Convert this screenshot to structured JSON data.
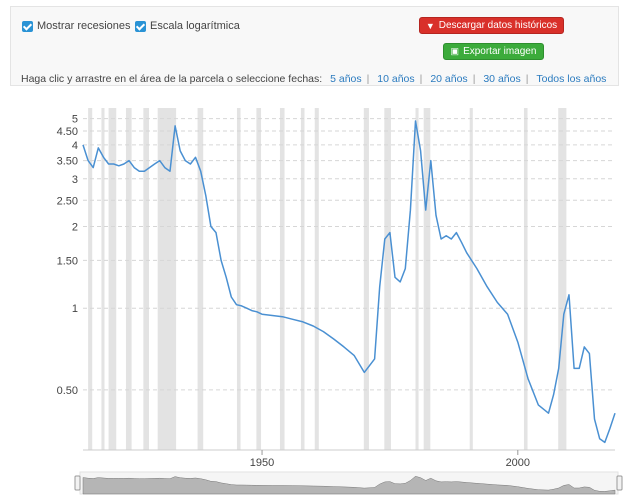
{
  "controls": {
    "recessions_label": "Mostrar recesiones",
    "log_scale_label": "Escala logarítmica",
    "download_label": "Descargar datos históricos",
    "export_label": "Exportar imagen",
    "range_prompt": "Haga clic y arrastre en el área de la parcela o seleccione fechas:",
    "range_options": [
      "5 años",
      "10 años",
      "20 años",
      "30 años",
      "Todos los años"
    ]
  },
  "colors": {
    "line": "#4a90d2",
    "recession": "#e3e3e3",
    "download": "#d9302a",
    "export": "#3cab3b"
  },
  "chart_data": {
    "type": "line",
    "title": "",
    "xlabel": "",
    "ylabel": "",
    "yscale": "log",
    "ylim": [
      0.3,
      5.2
    ],
    "xlim": [
      1915,
      2019
    ],
    "y_ticks": [
      5,
      4.5,
      4,
      3.5,
      3,
      2.5,
      2,
      1.5,
      1,
      0.5
    ],
    "y_tick_labels": [
      "5",
      "4.50",
      "4",
      "3.50",
      "3",
      "2.50",
      "2",
      "1.50",
      "1",
      "0.50"
    ],
    "x_ticks": [
      1950,
      2000
    ],
    "x_tick_labels": [
      "1950",
      "2000"
    ],
    "grid": "horizontal dashed",
    "recessions": [
      [
        1916.0,
        1916.8
      ],
      [
        1918.6,
        1919.2
      ],
      [
        1920.0,
        1921.5
      ],
      [
        1923.4,
        1924.5
      ],
      [
        1926.8,
        1927.9
      ],
      [
        1929.6,
        1933.2
      ],
      [
        1937.4,
        1938.5
      ],
      [
        1945.1,
        1945.8
      ],
      [
        1948.9,
        1949.8
      ],
      [
        1953.5,
        1954.4
      ],
      [
        1957.6,
        1958.3
      ],
      [
        1960.3,
        1961.1
      ],
      [
        1969.9,
        1970.9
      ],
      [
        1973.9,
        1975.2
      ],
      [
        1980.0,
        1980.6
      ],
      [
        1981.6,
        1982.9
      ],
      [
        1990.6,
        1991.2
      ],
      [
        2001.2,
        2001.9
      ],
      [
        2007.9,
        2009.5
      ]
    ],
    "series": [
      {
        "x": [
          1915,
          1916,
          1917,
          1918,
          1919,
          1920,
          1921,
          1922,
          1923,
          1924,
          1925,
          1926,
          1927,
          1928,
          1929,
          1930,
          1931,
          1932,
          1933,
          1934,
          1935,
          1936,
          1937,
          1938,
          1939,
          1940,
          1941,
          1942,
          1943,
          1944,
          1945,
          1946,
          1947,
          1948,
          1949,
          1950,
          1952,
          1954,
          1956,
          1958,
          1960,
          1962,
          1964,
          1966,
          1968,
          1970,
          1972,
          1973,
          1974,
          1975,
          1976,
          1977,
          1978,
          1979,
          1980,
          1981,
          1982,
          1983,
          1984,
          1985,
          1986,
          1987,
          1988,
          1989,
          1990,
          1992,
          1994,
          1996,
          1998,
          2000,
          2002,
          2004,
          2006,
          2007,
          2008,
          2009,
          2010,
          2011,
          2012,
          2013,
          2014,
          2015,
          2016,
          2017,
          2018,
          2019
        ],
        "y": [
          4.0,
          3.5,
          3.3,
          3.9,
          3.6,
          3.4,
          3.4,
          3.35,
          3.4,
          3.5,
          3.3,
          3.2,
          3.2,
          3.3,
          3.4,
          3.5,
          3.3,
          3.2,
          4.7,
          3.8,
          3.5,
          3.4,
          3.6,
          3.2,
          2.6,
          2.0,
          1.9,
          1.5,
          1.3,
          1.1,
          1.03,
          1.02,
          1.0,
          0.98,
          0.97,
          0.95,
          0.94,
          0.93,
          0.91,
          0.89,
          0.86,
          0.82,
          0.77,
          0.72,
          0.67,
          0.58,
          0.65,
          1.2,
          1.8,
          1.9,
          1.3,
          1.25,
          1.4,
          2.3,
          4.9,
          3.8,
          2.3,
          3.5,
          2.2,
          1.8,
          1.85,
          1.8,
          1.9,
          1.75,
          1.6,
          1.4,
          1.2,
          1.05,
          0.95,
          0.75,
          0.55,
          0.44,
          0.41,
          0.48,
          0.6,
          0.95,
          1.12,
          0.6,
          0.6,
          0.72,
          0.68,
          0.39,
          0.33,
          0.32,
          0.36,
          0.41
        ]
      }
    ]
  }
}
